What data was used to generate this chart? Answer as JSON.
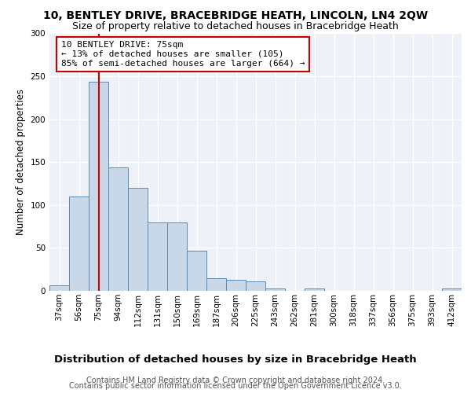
{
  "title1": "10, BENTLEY DRIVE, BRACEBRIDGE HEATH, LINCOLN, LN4 2QW",
  "title2": "Size of property relative to detached houses in Bracebridge Heath",
  "xlabel": "Distribution of detached houses by size in Bracebridge Heath",
  "ylabel": "Number of detached properties",
  "footer1": "Contains HM Land Registry data © Crown copyright and database right 2024.",
  "footer2": "Contains public sector information licensed under the Open Government Licence v3.0.",
  "bins": [
    "37sqm",
    "56sqm",
    "75sqm",
    "94sqm",
    "112sqm",
    "131sqm",
    "150sqm",
    "169sqm",
    "187sqm",
    "206sqm",
    "225sqm",
    "243sqm",
    "262sqm",
    "281sqm",
    "300sqm",
    "318sqm",
    "337sqm",
    "356sqm",
    "375sqm",
    "393sqm",
    "412sqm"
  ],
  "values": [
    6,
    110,
    244,
    144,
    120,
    80,
    80,
    47,
    15,
    13,
    11,
    3,
    0,
    3,
    0,
    0,
    0,
    0,
    0,
    0,
    3
  ],
  "bar_color": "#c8d8e8",
  "bar_edge_color": "#5a8ab5",
  "red_line_index": 2,
  "red_line_color": "#cc0000",
  "annotation_text": "10 BENTLEY DRIVE: 75sqm\n← 13% of detached houses are smaller (105)\n85% of semi-detached houses are larger (664) →",
  "annotation_box_color": "#ffffff",
  "annotation_box_edge": "#cc0000",
  "ylim": [
    0,
    300
  ],
  "yticks": [
    0,
    50,
    100,
    150,
    200,
    250,
    300
  ],
  "background_color": "#eef2f8",
  "grid_color": "#ffffff",
  "title1_fontsize": 10,
  "title2_fontsize": 9,
  "xlabel_fontsize": 9.5,
  "ylabel_fontsize": 8.5,
  "tick_fontsize": 7.5,
  "annotation_fontsize": 8,
  "footer_fontsize": 7
}
